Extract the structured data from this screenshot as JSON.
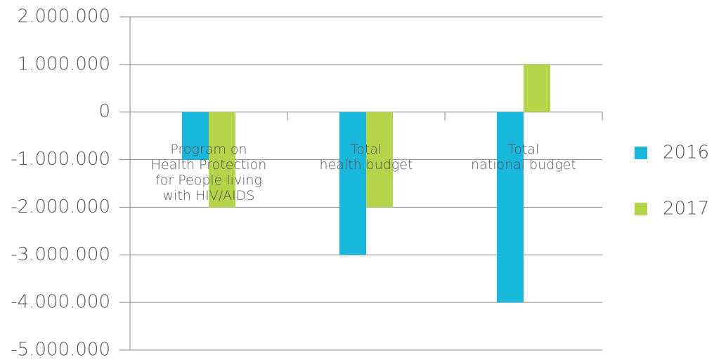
{
  "chart_data": {
    "type": "bar",
    "categories": [
      "Program on\nHealth Protection\nfor People living\nwith HIV/AIDS",
      "Total\nhealth budget",
      "Total\nnational budget"
    ],
    "series": [
      {
        "name": "2016",
        "color": "#1ab7dc",
        "values": [
          -1000000,
          -3000000,
          -4000000
        ]
      },
      {
        "name": "2017",
        "color": "#b5d44a",
        "values": [
          -2000000,
          -2000000,
          1000000
        ]
      }
    ],
    "ylim": [
      -5000000,
      2000000
    ],
    "yticks": [
      {
        "value": -5000000,
        "label": "-5.000.000"
      },
      {
        "value": -4000000,
        "label": "-4.000.000"
      },
      {
        "value": -3000000,
        "label": "-3.000.000"
      },
      {
        "value": -2000000,
        "label": "-2.000.000"
      },
      {
        "value": -1000000,
        "label": "-1.000.000"
      },
      {
        "value": 0,
        "label": "0"
      },
      {
        "value": 1000000,
        "label": "1.000.000"
      },
      {
        "value": 2000000,
        "label": "2.000.000"
      }
    ],
    "grid": true,
    "legend": "right"
  }
}
